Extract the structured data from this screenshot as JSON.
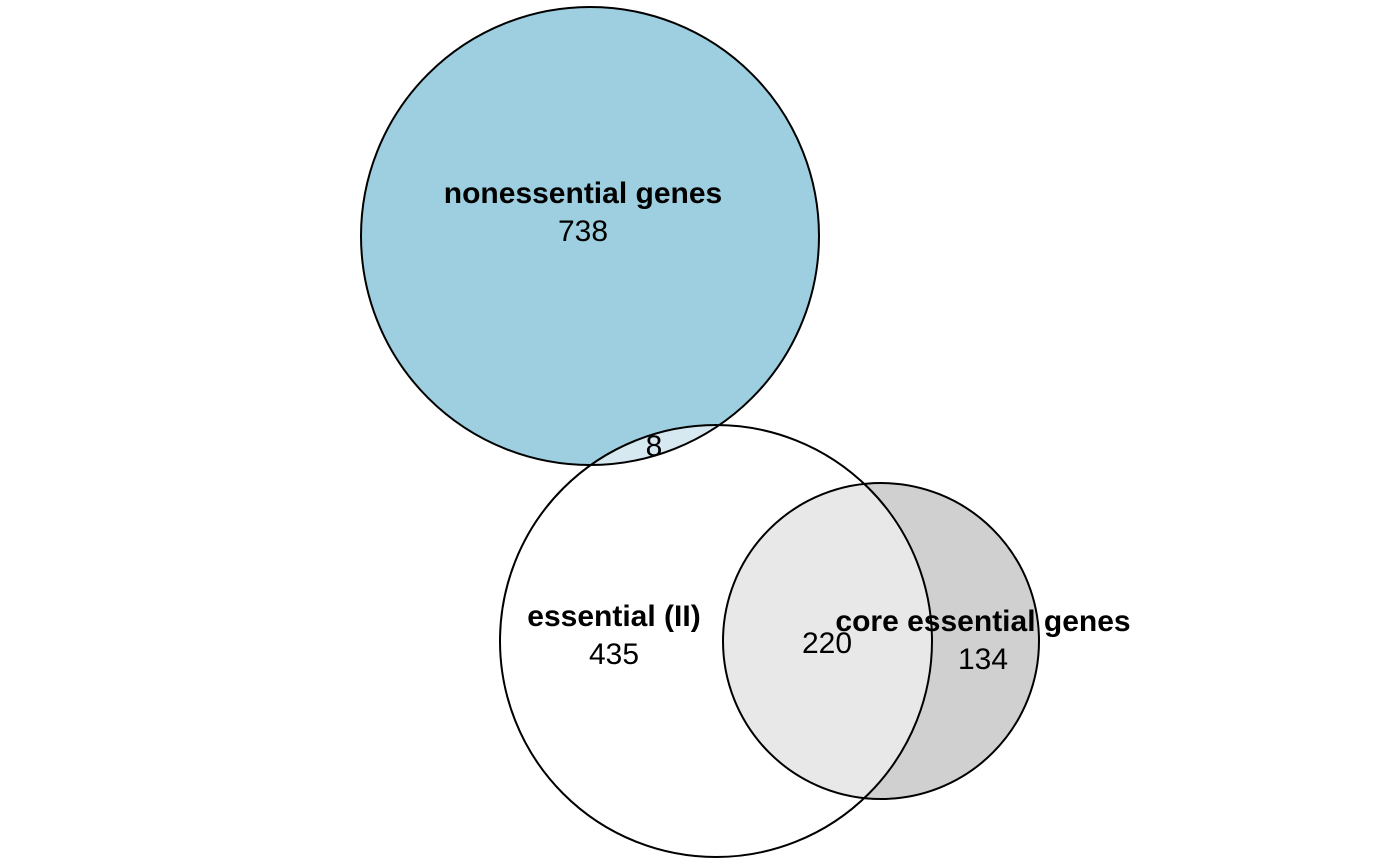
{
  "sets": [
    {
      "id": "nonessential",
      "label": "nonessential genes",
      "only_count": "738",
      "fill": "#9ecfe0"
    },
    {
      "id": "essential",
      "label": "essential (II)",
      "only_count": "435",
      "fill": "#ffffff"
    },
    {
      "id": "core",
      "label": "core essential genes",
      "only_count": "134",
      "fill": "#d0d0d0"
    }
  ],
  "intersections": [
    {
      "sets": [
        "nonessential",
        "essential"
      ],
      "count": "8",
      "fill": "#d6e9f0"
    },
    {
      "sets": [
        "essential",
        "core"
      ],
      "count": "220",
      "fill": "#e8e8e8"
    }
  ]
}
